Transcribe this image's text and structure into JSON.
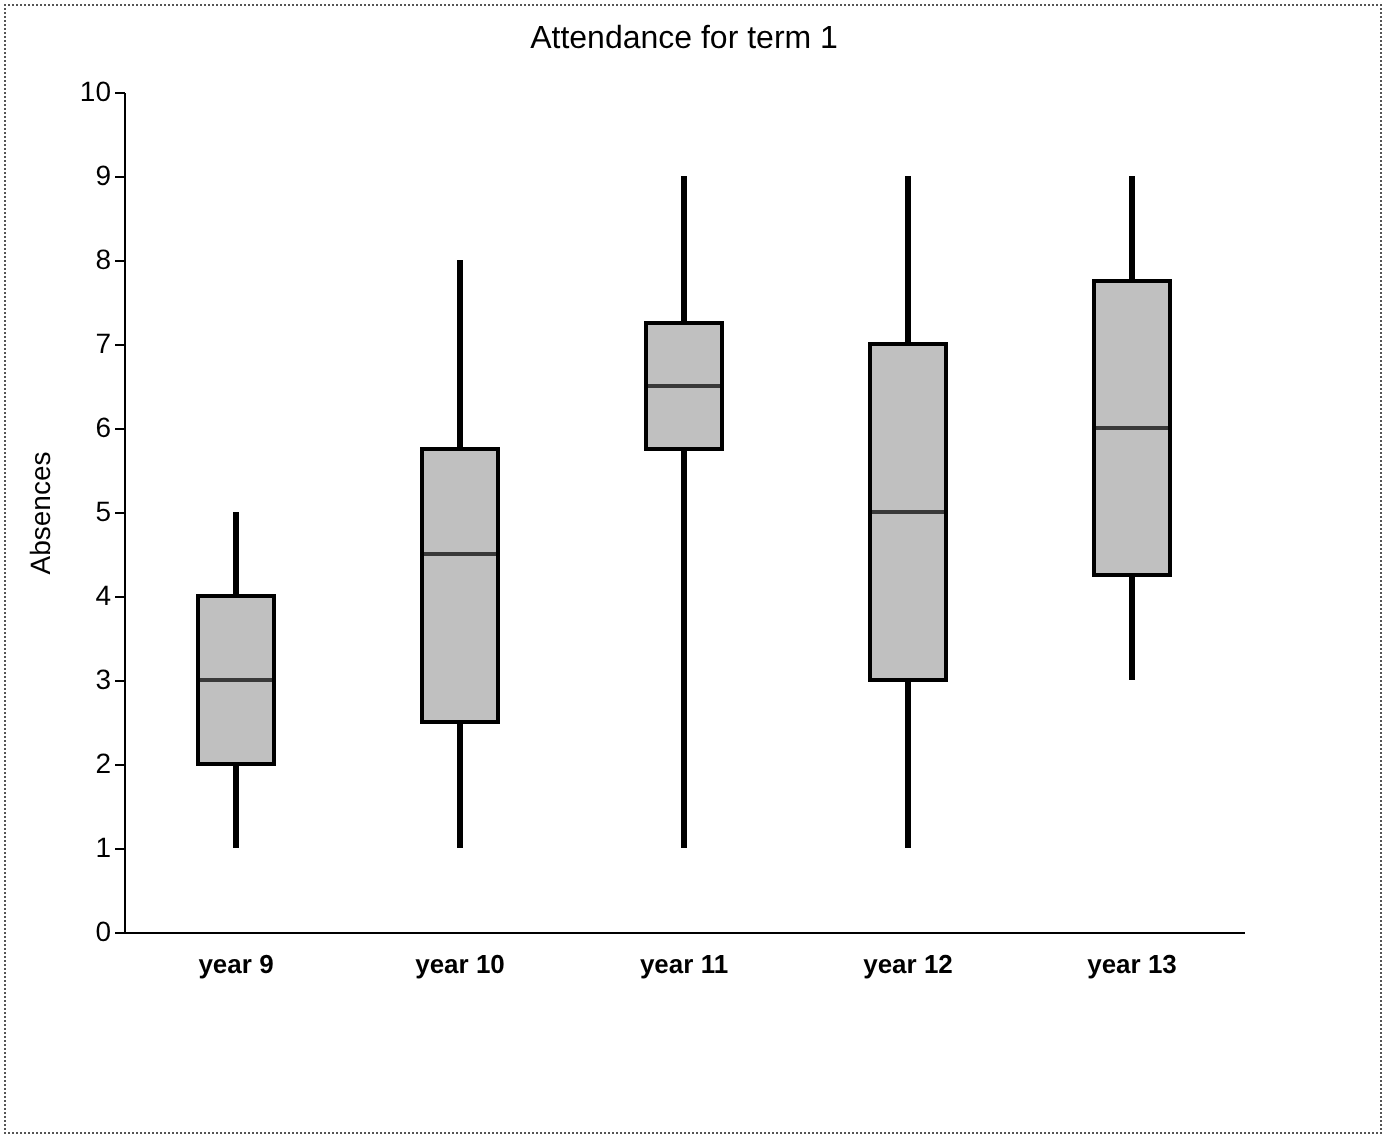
{
  "chart_data": {
    "type": "box",
    "title": "Attendance for term 1",
    "ylabel": "Absences",
    "categories": [
      "year 9",
      "year 10",
      "year 11",
      "year 12",
      "year 13"
    ],
    "series": [
      {
        "color": "#c0c0c0",
        "boxes": [
          {
            "low": 1,
            "q1": 2,
            "median": 3,
            "q3": 4,
            "high": 5
          },
          {
            "low": 1,
            "q1": 2.5,
            "median": 4.5,
            "q3": 5.75,
            "high": 8
          },
          {
            "low": 1,
            "q1": 5.75,
            "median": 6.5,
            "q3": 7.25,
            "high": 9
          },
          {
            "low": 1,
            "q1": 3,
            "median": 5,
            "q3": 7,
            "high": 9
          },
          {
            "low": 3,
            "q1": 4.25,
            "median": 6,
            "q3": 7.75,
            "high": 9
          }
        ]
      }
    ],
    "ylim": [
      0,
      10
    ],
    "yticks": [
      0,
      1,
      2,
      3,
      4,
      5,
      6,
      7,
      8,
      9,
      10
    ]
  }
}
